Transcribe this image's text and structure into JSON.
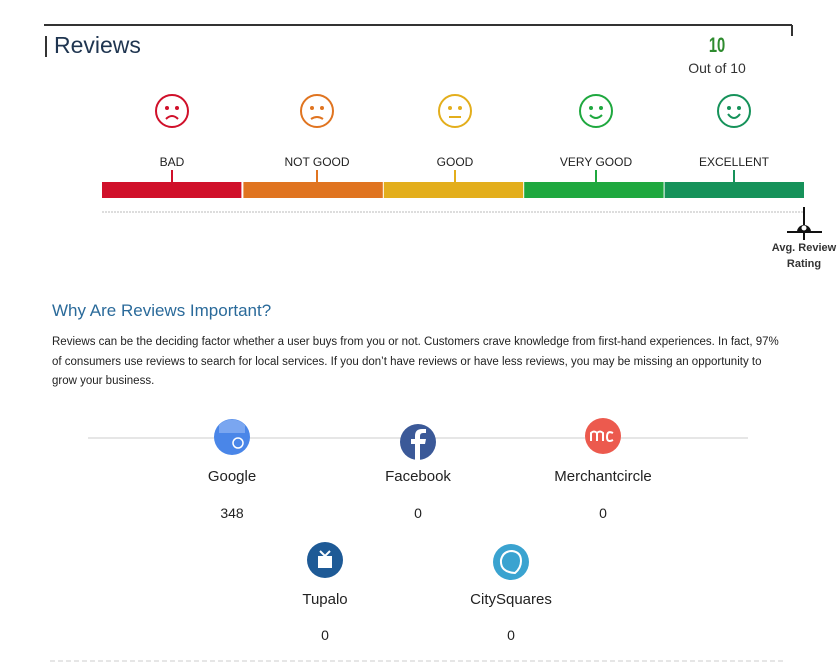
{
  "header": {
    "title": "Reviews",
    "score": "10",
    "score_caption": "Out of 10"
  },
  "rating_scale": {
    "levels": [
      "BAD",
      "NOT GOOD",
      "GOOD",
      "VERY GOOD",
      "EXCELLENT"
    ],
    "marker_label": [
      "Avg. Review",
      "Rating"
    ]
  },
  "section": {
    "heading": "Why Are Reviews Important?",
    "body": "Reviews can be the deciding factor whether a user buys from you or not. Customers crave knowledge from first-hand experiences. In fact, 97% of consumers use reviews to search for local services. If you don’t have reviews or have less reviews, you may be missing an opportunity to grow your business."
  },
  "platforms": [
    {
      "name": "Google",
      "count": 348
    },
    {
      "name": "Facebook",
      "count": 0
    },
    {
      "name": "Merchantcircle",
      "count": 0
    },
    {
      "name": "Tupalo",
      "count": 0
    },
    {
      "name": "CitySquares",
      "count": 0
    }
  ]
}
